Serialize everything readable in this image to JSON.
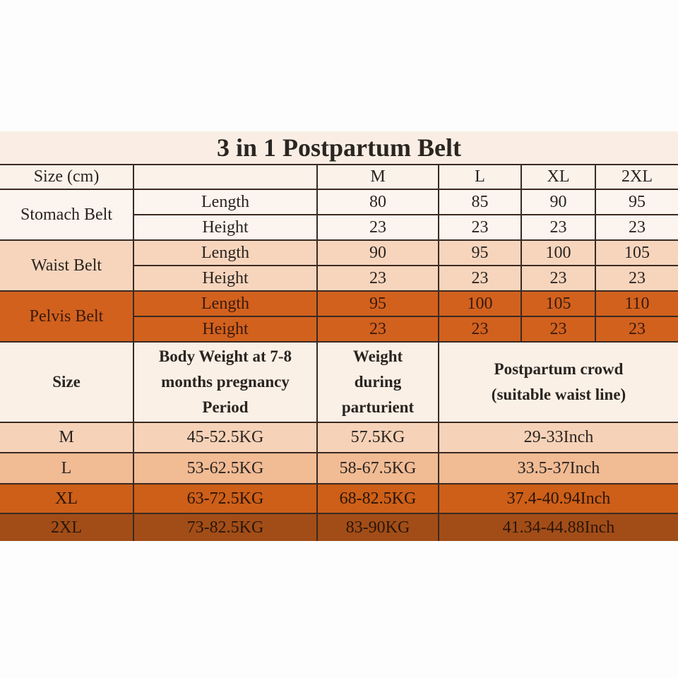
{
  "title": "3 in 1 Postpartum Belt",
  "belt_table": {
    "header": {
      "label": "Size (cm)",
      "blank": "",
      "sizes": [
        "M",
        "L",
        "XL",
        "2XL"
      ]
    },
    "groups": [
      {
        "name": "Stomach Belt",
        "color": "#fcf4ee",
        "rows": [
          {
            "dim": "Length",
            "values": [
              "80",
              "85",
              "90",
              "95"
            ]
          },
          {
            "dim": "Height",
            "values": [
              "23",
              "23",
              "23",
              "23"
            ]
          }
        ]
      },
      {
        "name": "Waist Belt",
        "color": "#f7d5bd",
        "rows": [
          {
            "dim": "Length",
            "values": [
              "90",
              "95",
              "100",
              "105"
            ]
          },
          {
            "dim": "Height",
            "values": [
              "23",
              "23",
              "23",
              "23"
            ]
          }
        ]
      },
      {
        "name": "Pelvis Belt",
        "color": "#d2611e",
        "rows": [
          {
            "dim": "Length",
            "values": [
              "95",
              "100",
              "105",
              "110"
            ]
          },
          {
            "dim": "Height",
            "values": [
              "23",
              "23",
              "23",
              "23"
            ]
          }
        ]
      }
    ]
  },
  "weight_table": {
    "headers": [
      "Size",
      "Body Weight at 7-8 months pregnancy Period",
      "Weight during parturient",
      "Postpartum crowd (suitable waist line)"
    ],
    "rows": [
      [
        "M",
        "45-52.5KG",
        "57.5KG",
        "29-33Inch"
      ],
      [
        "L",
        "53-62.5KG",
        "58-67.5KG",
        "33.5-37Inch"
      ],
      [
        "XL",
        "63-72.5KG",
        "68-82.5KG",
        "37.4-40.94Inch"
      ],
      [
        "2XL",
        "73-82.5KG",
        "83-90KG",
        "41.34-44.88Inch"
      ]
    ]
  }
}
